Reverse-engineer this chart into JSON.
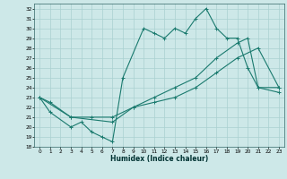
{
  "xlabel": "Humidex (Indice chaleur)",
  "xlim": [
    -0.5,
    23.5
  ],
  "ylim": [
    18,
    32.5
  ],
  "yticks": [
    18,
    19,
    20,
    21,
    22,
    23,
    24,
    25,
    26,
    27,
    28,
    29,
    30,
    31,
    32
  ],
  "xticks": [
    0,
    1,
    2,
    3,
    4,
    5,
    6,
    7,
    8,
    9,
    10,
    11,
    12,
    13,
    14,
    15,
    16,
    17,
    18,
    19,
    20,
    21,
    22,
    23
  ],
  "bg_color": "#cde8e8",
  "grid_color": "#aad0d0",
  "line_color": "#1a7a6e",
  "line1_x": [
    0,
    1,
    3,
    4,
    5,
    6,
    7,
    8,
    10,
    11,
    12,
    13,
    14,
    15,
    16,
    17,
    18,
    19,
    20,
    21,
    23
  ],
  "line1_y": [
    23,
    21.5,
    20,
    20.5,
    19.5,
    19,
    18.5,
    25,
    30,
    29.5,
    29,
    30,
    29.5,
    31,
    32,
    30,
    29,
    29,
    26,
    24,
    24
  ],
  "line2_x": [
    0,
    1,
    3,
    5,
    7,
    9,
    11,
    13,
    15,
    17,
    19,
    21,
    23
  ],
  "line2_y": [
    23,
    22.5,
    21,
    21,
    21,
    22,
    22.5,
    23,
    24,
    25.5,
    27,
    28,
    24
  ],
  "line3_x": [
    0,
    3,
    7,
    9,
    11,
    13,
    15,
    17,
    19,
    20,
    21,
    23
  ],
  "line3_y": [
    23,
    21,
    20.5,
    22,
    23,
    24,
    25,
    27,
    28.5,
    29,
    24,
    23.5
  ]
}
